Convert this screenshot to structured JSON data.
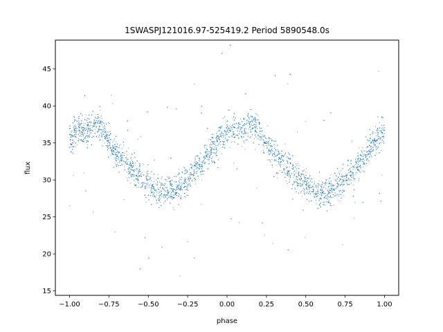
{
  "chart_data": {
    "type": "scatter",
    "title": "1SWASPJ121016.97-525419.2 Period 5890548.0s",
    "xlabel": "phase",
    "ylabel": "flux",
    "xlim": [
      -1.09,
      1.09
    ],
    "ylim": [
      14.4,
      48.9
    ],
    "xticks": [
      -1.0,
      -0.75,
      -0.5,
      -0.25,
      0.0,
      0.25,
      0.5,
      0.75,
      1.0
    ],
    "xtick_labels": [
      "−1.00",
      "−0.75",
      "−0.50",
      "−0.25",
      "0.00",
      "0.25",
      "0.50",
      "0.75",
      "1.00"
    ],
    "yticks": [
      15,
      20,
      25,
      30,
      35,
      40,
      45
    ],
    "ytick_labels": [
      "15",
      "20",
      "25",
      "30",
      "35",
      "40",
      "45"
    ],
    "grid": false,
    "point_color": "#1f77b4",
    "series": [
      {
        "x": [
          -1.0,
          -0.95,
          -0.9,
          -0.85,
          -0.8,
          -0.75,
          -0.7,
          -0.65,
          -0.6,
          -0.55,
          -0.5,
          -0.45,
          -0.4,
          -0.35,
          -0.3,
          -0.25,
          -0.2,
          -0.15,
          -0.1,
          -0.05,
          0.0,
          0.05,
          0.1,
          0.15,
          0.2,
          0.25,
          0.3,
          0.35,
          0.4,
          0.45,
          0.5,
          0.55,
          0.6,
          0.65,
          0.7,
          0.75,
          0.8,
          0.85,
          0.9,
          0.95,
          1.0
        ],
        "y": [
          35.5,
          37.0,
          36.5,
          37.5,
          37.0,
          35.0,
          33.5,
          32.5,
          31.5,
          30.5,
          29.5,
          28.5,
          28.5,
          28.5,
          29.0,
          30.0,
          31.5,
          32.5,
          34.0,
          35.5,
          36.5,
          37.0,
          36.5,
          37.5,
          37.0,
          35.0,
          33.5,
          32.5,
          31.5,
          30.5,
          29.5,
          28.5,
          28.5,
          28.5,
          29.0,
          30.0,
          31.5,
          32.5,
          34.0,
          35.5,
          36.5
        ]
      }
    ]
  }
}
